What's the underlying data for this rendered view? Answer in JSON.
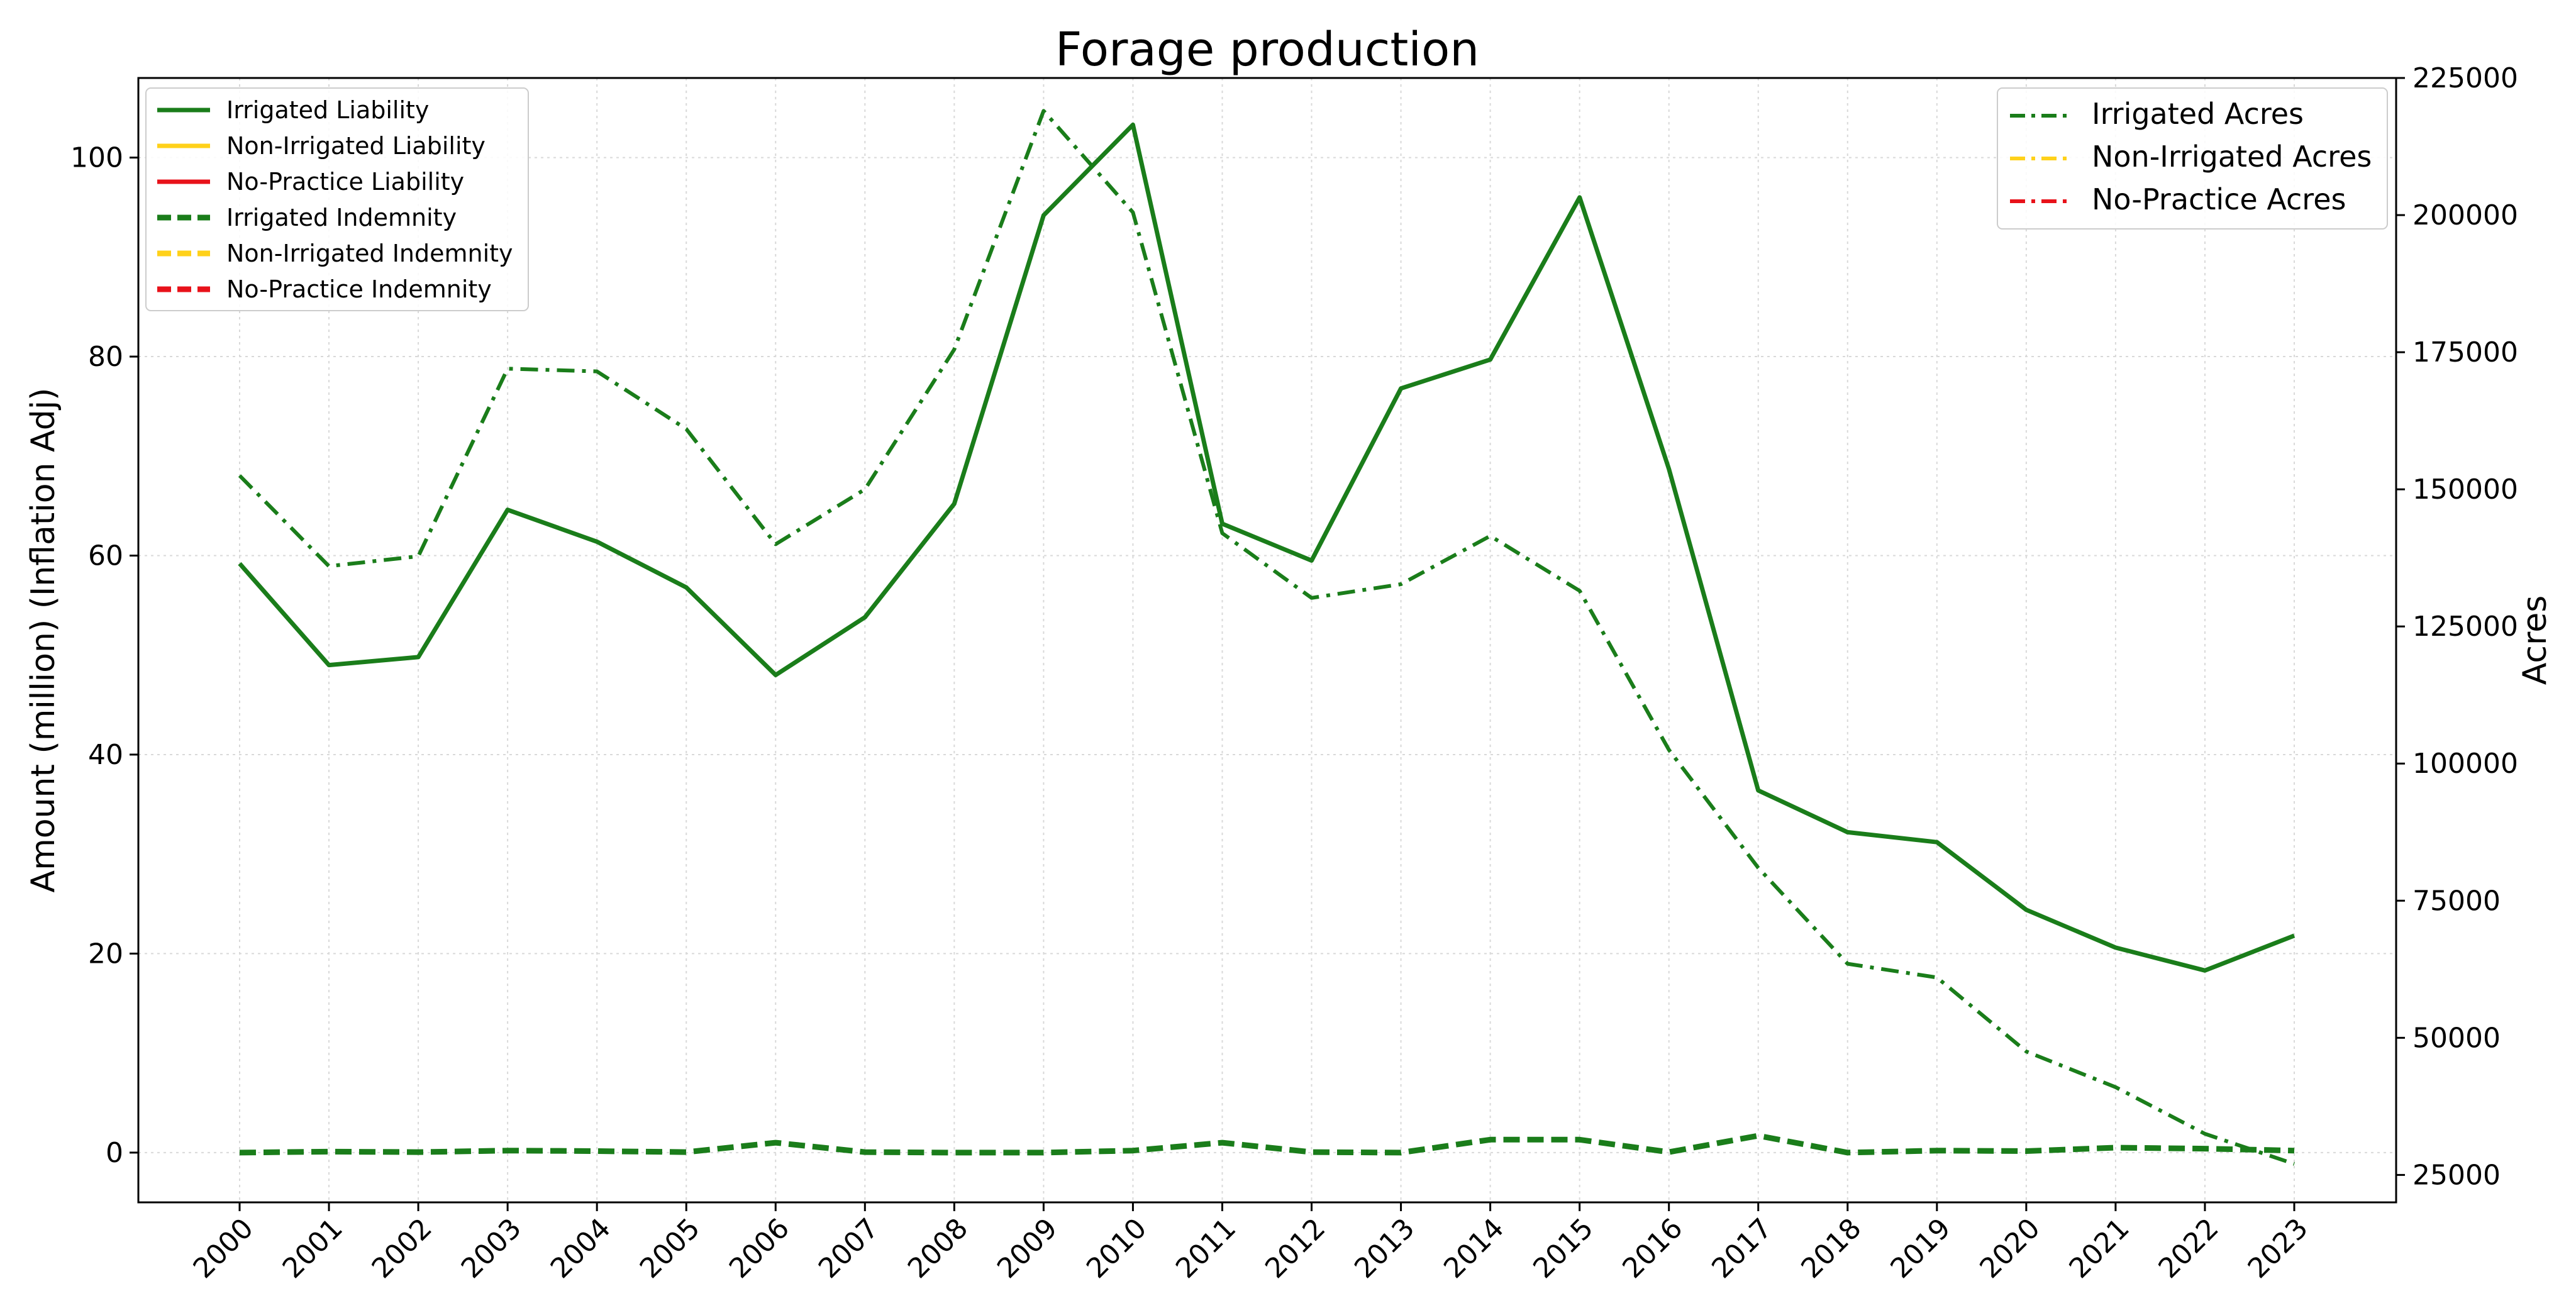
{
  "chart_data": {
    "type": "line",
    "title": "Forage production",
    "xlabel": "",
    "ylabel": "Amount (million) (Inflation Adj)",
    "y2label": "Acres",
    "ylim": [
      -5,
      108
    ],
    "y2lim": [
      20000,
      225000
    ],
    "grid": true,
    "x": [
      "2000",
      "2001",
      "2002",
      "2003",
      "2004",
      "2005",
      "2006",
      "2007",
      "2008",
      "2009",
      "2010",
      "2011",
      "2012",
      "2013",
      "2014",
      "2015",
      "2016",
      "2017",
      "2018",
      "2019",
      "2020",
      "2021",
      "2022",
      "2023"
    ],
    "yticks": [
      0,
      20,
      40,
      60,
      80,
      100
    ],
    "y2ticks": [
      25000,
      50000,
      75000,
      100000,
      125000,
      150000,
      175000,
      200000,
      225000
    ],
    "colors": {
      "irrigated": "#1a7d1a",
      "non_irrigated": "#ffd11a",
      "no_practice": "#e8121a"
    },
    "legend_left": {
      "placement": "top-left",
      "entries": [
        {
          "label": "Irrigated Liability",
          "color": "#1a7d1a",
          "style": "solid"
        },
        {
          "label": "Non-Irrigated Liability",
          "color": "#ffd11a",
          "style": "solid"
        },
        {
          "label": "No-Practice Liability",
          "color": "#e8121a",
          "style": "solid"
        },
        {
          "label": "Irrigated Indemnity",
          "color": "#1a7d1a",
          "style": "dashed"
        },
        {
          "label": "Non-Irrigated Indemnity",
          "color": "#ffd11a",
          "style": "dashed"
        },
        {
          "label": "No-Practice Indemnity",
          "color": "#e8121a",
          "style": "dashed"
        }
      ]
    },
    "legend_right": {
      "placement": "top-right",
      "entries": [
        {
          "label": "Irrigated Acres",
          "color": "#1a7d1a",
          "style": "dashdot"
        },
        {
          "label": "Non-Irrigated Acres",
          "color": "#ffd11a",
          "style": "dashdot"
        },
        {
          "label": "No-Practice Acres",
          "color": "#e8121a",
          "style": "dashdot"
        }
      ]
    },
    "series": [
      {
        "name": "Irrigated Liability",
        "axis": "left",
        "style": "solid",
        "color": "#1a7d1a",
        "values": [
          59.2,
          49.0,
          49.8,
          64.6,
          61.4,
          56.8,
          48.0,
          53.8,
          65.2,
          94.2,
          103.3,
          63.2,
          59.5,
          76.8,
          79.7,
          96.0,
          68.7,
          36.4,
          32.2,
          31.2,
          24.4,
          20.6,
          18.3,
          21.8
        ]
      },
      {
        "name": "Irrigated Indemnity",
        "axis": "left",
        "style": "dashed",
        "color": "#1a7d1a",
        "values": [
          0.0,
          0.1,
          0.05,
          0.2,
          0.15,
          0.05,
          1.0,
          0.05,
          0.0,
          0.0,
          0.2,
          1.0,
          0.05,
          0.0,
          1.3,
          1.3,
          0.05,
          1.7,
          0.0,
          0.2,
          0.15,
          0.5,
          0.4,
          0.2
        ]
      },
      {
        "name": "Irrigated Acres",
        "axis": "right",
        "style": "dashdot",
        "color": "#1a7d1a",
        "values": [
          152500,
          136000,
          137800,
          172000,
          171500,
          161000,
          140000,
          150000,
          175500,
          219000,
          200500,
          142000,
          130200,
          132700,
          141500,
          131500,
          102500,
          81000,
          63500,
          61000,
          47500,
          41000,
          32500,
          27000
        ]
      }
    ]
  }
}
